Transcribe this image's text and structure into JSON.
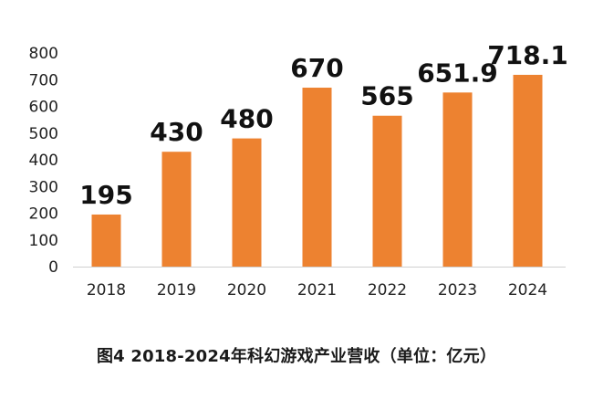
{
  "caption": "图4  2018-2024年科幻游戏产业营收（单位：亿元）",
  "chart_data": {
    "type": "bar",
    "categories": [
      "2018",
      "2019",
      "2020",
      "2021",
      "2022",
      "2023",
      "2024"
    ],
    "values": [
      195,
      430,
      480,
      670,
      565,
      651.9,
      718.1
    ],
    "value_labels": [
      "195",
      "430",
      "480",
      "670",
      "565",
      "651.9",
      "718.1"
    ],
    "ylim": [
      0,
      800
    ],
    "yticks": [
      0,
      100,
      200,
      300,
      400,
      500,
      600,
      700,
      800
    ],
    "grid": false,
    "legend": "none",
    "bar_color": "#ED8230",
    "axis_color": "#d0d0d0"
  }
}
